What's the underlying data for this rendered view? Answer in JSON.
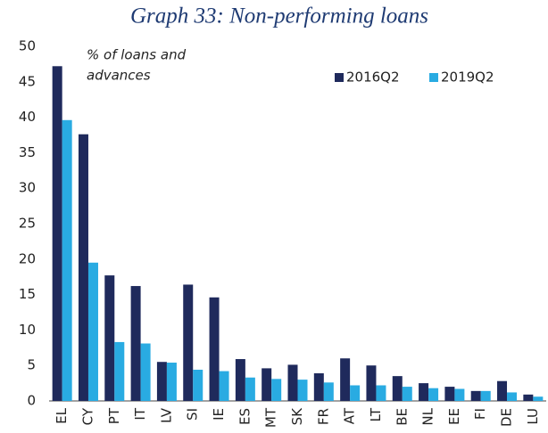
{
  "chart_data": {
    "type": "bar",
    "title": "Graph 33: Non-performing loans",
    "subtitle": [
      "% of loans and",
      "advances"
    ],
    "categories": [
      "EL",
      "CY",
      "PT",
      "IT",
      "LV",
      "SI",
      "IE",
      "ES",
      "MT",
      "SK",
      "FR",
      "AT",
      "LT",
      "BE",
      "NL",
      "EE",
      "FI",
      "DE",
      "LU"
    ],
    "series": [
      {
        "name": "2016Q2",
        "color": "#1f2a5c",
        "values": [
          47.2,
          37.6,
          17.7,
          16.2,
          5.5,
          16.4,
          14.6,
          5.9,
          4.6,
          5.1,
          3.9,
          6.0,
          5.0,
          3.5,
          2.5,
          2.0,
          1.4,
          2.8,
          0.9
        ]
      },
      {
        "name": "2019Q2",
        "color": "#29abe2",
        "values": [
          39.6,
          19.5,
          8.3,
          8.1,
          5.4,
          4.4,
          4.2,
          3.3,
          3.1,
          3.0,
          2.6,
          2.2,
          2.2,
          2.0,
          1.8,
          1.7,
          1.4,
          1.2,
          0.6
        ]
      }
    ],
    "ylim": [
      0,
      50
    ],
    "yticks": [
      0,
      5,
      10,
      15,
      20,
      25,
      30,
      35,
      40,
      45,
      50
    ],
    "grid": false,
    "legend": "upper right"
  }
}
